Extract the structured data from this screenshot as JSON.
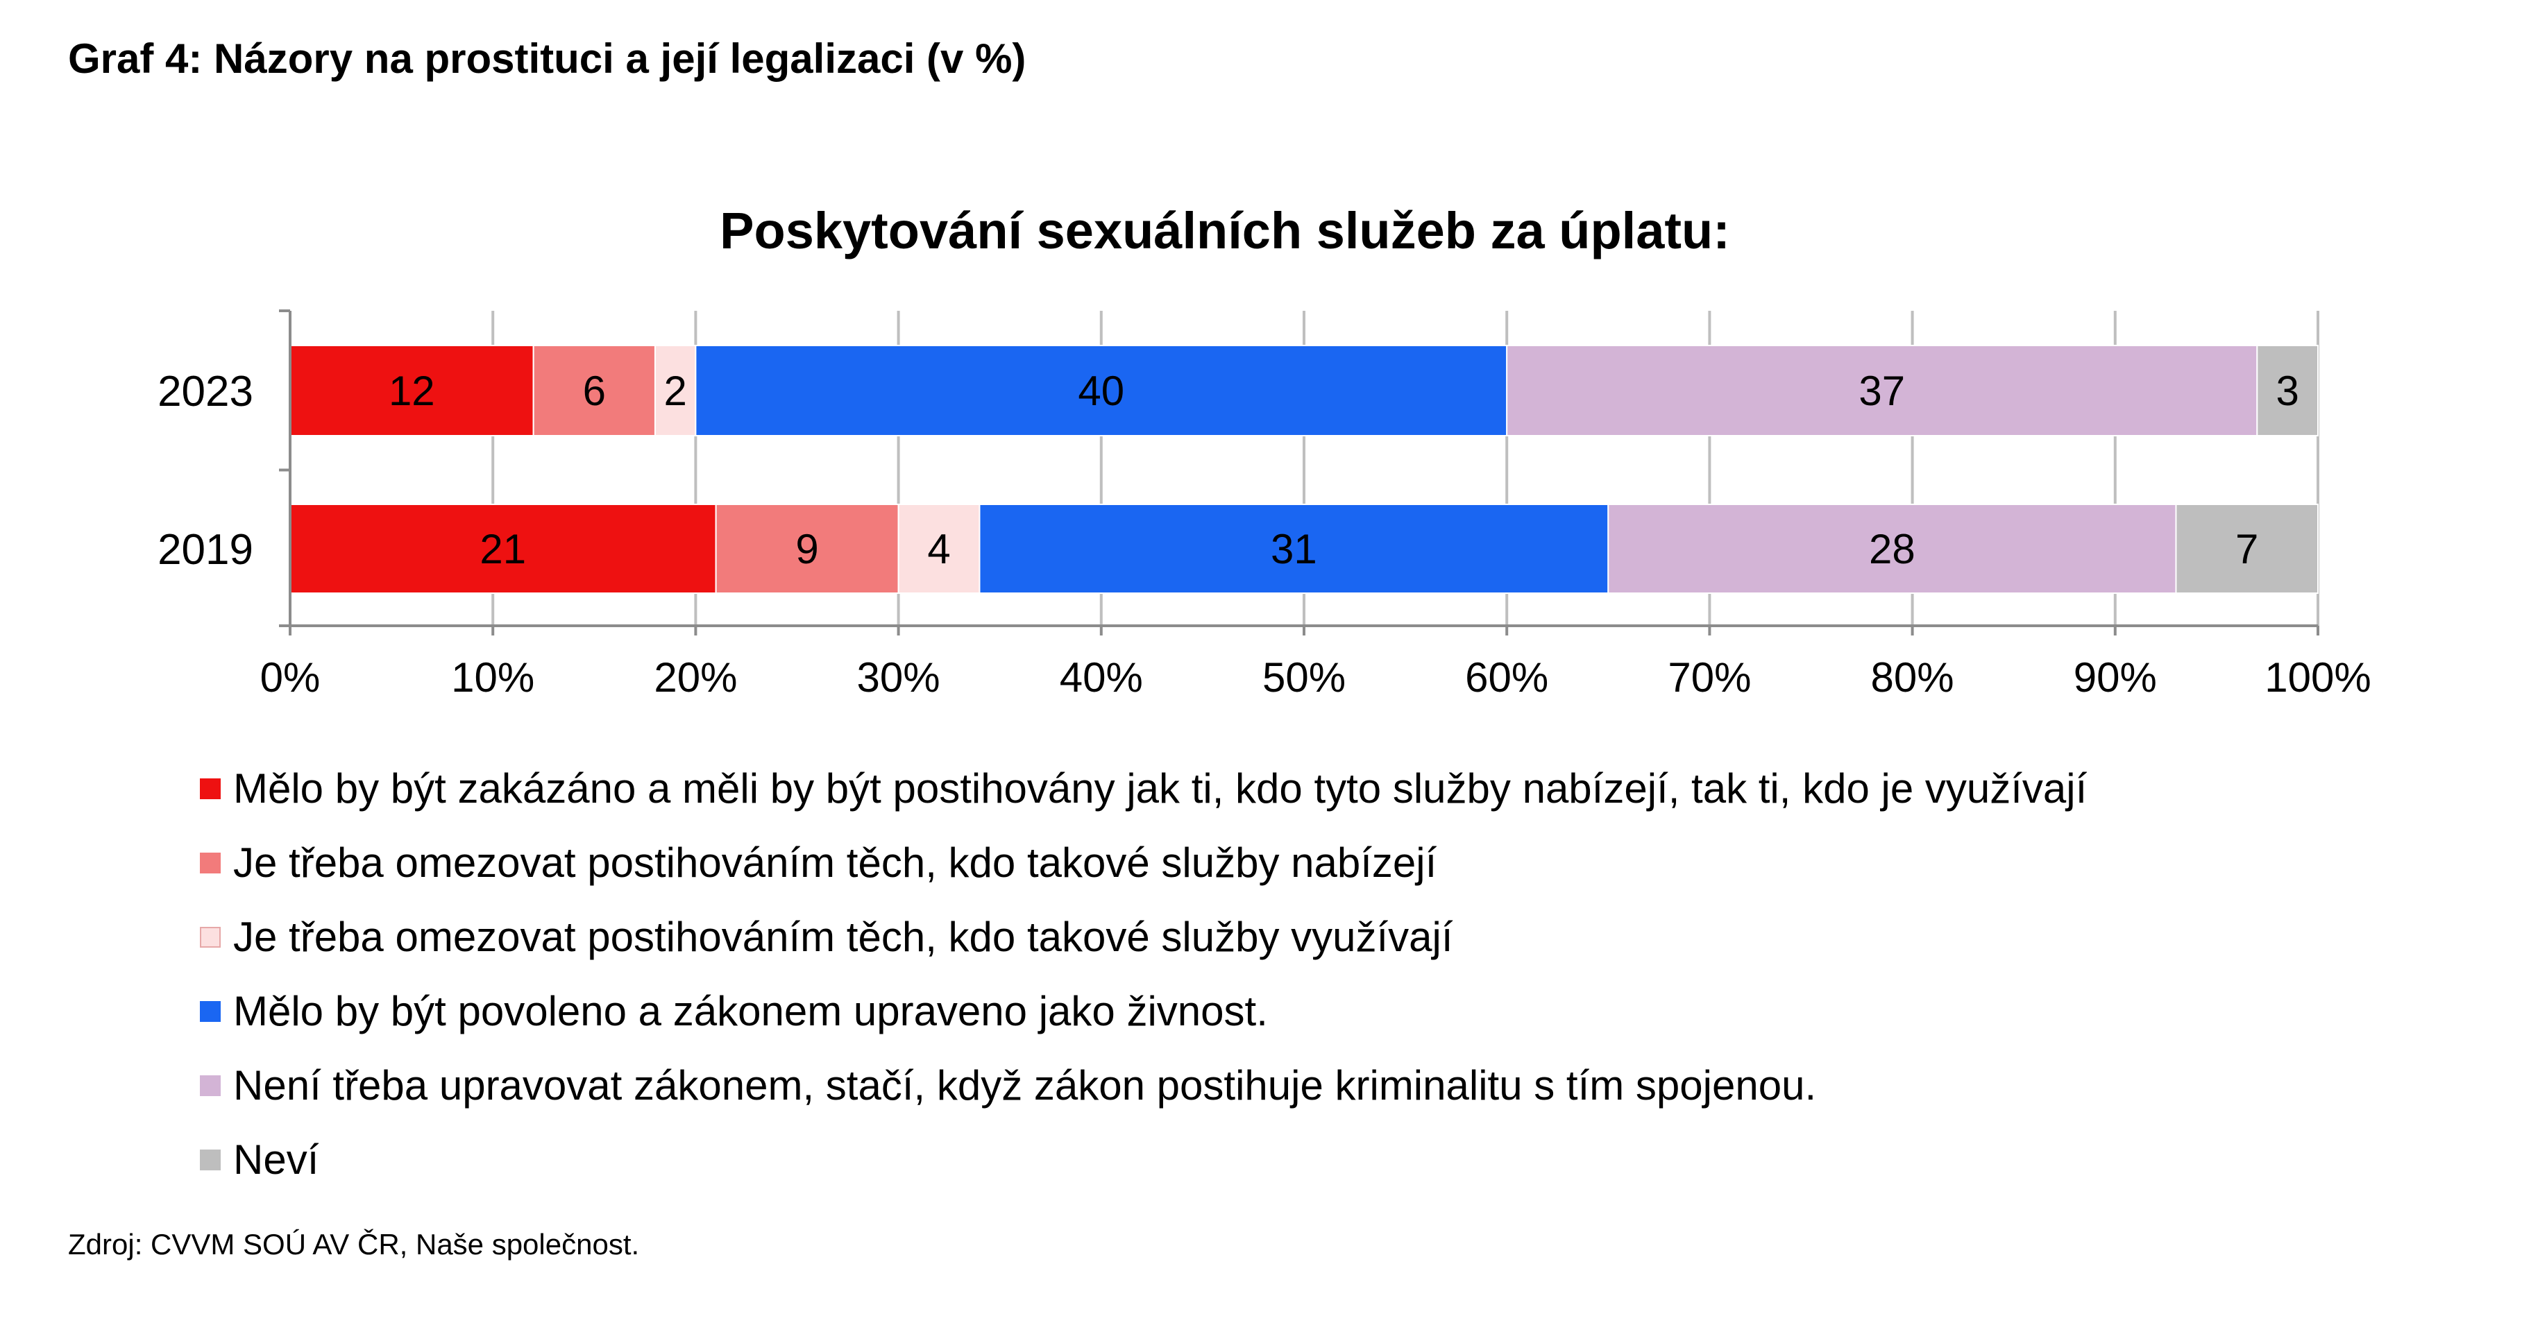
{
  "figure": {
    "title": "Graf 4: Názory na prostituci a její legalizaci (v %)",
    "source": "Zdroj: CVVM SOÚ AV ČR, Naše společnost."
  },
  "chart_data": {
    "type": "bar",
    "orientation": "horizontal",
    "stacked": true,
    "title": "Poskytování sexuálních služeb za úplatu:",
    "categories": [
      "2023",
      "2019"
    ],
    "xlim": [
      0,
      100
    ],
    "x_ticks": [
      "0%",
      "10%",
      "20%",
      "30%",
      "40%",
      "50%",
      "60%",
      "70%",
      "80%",
      "90%",
      "100%"
    ],
    "grid": "vertical",
    "legend_position": "bottom",
    "series": [
      {
        "name": "Mělo by být zakázáno a měli by být postihovány jak ti, kdo tyto služby nabízejí, tak ti, kdo je využívají",
        "color": "#ee1111",
        "values": [
          12,
          21
        ]
      },
      {
        "name": "Je třeba omezovat postihováním těch, kdo takové služby nabízejí",
        "color": "#f27b7b",
        "values": [
          6,
          9
        ]
      },
      {
        "name": "Je třeba omezovat postihováním těch, kdo takové služby využívají",
        "color": "#fce0e0",
        "values": [
          2,
          4
        ]
      },
      {
        "name": "Mělo by být povoleno a zákonem upraveno jako živnost.",
        "color": "#1a66f2",
        "values": [
          40,
          31
        ]
      },
      {
        "name": "Není třeba upravovat zákonem, stačí, když zákon postihuje kriminalitu s tím spojenou.",
        "color": "#d3b4d6",
        "values": [
          37,
          28
        ]
      },
      {
        "name": "Neví",
        "color": "#bebebe",
        "values": [
          3,
          7
        ]
      }
    ]
  }
}
